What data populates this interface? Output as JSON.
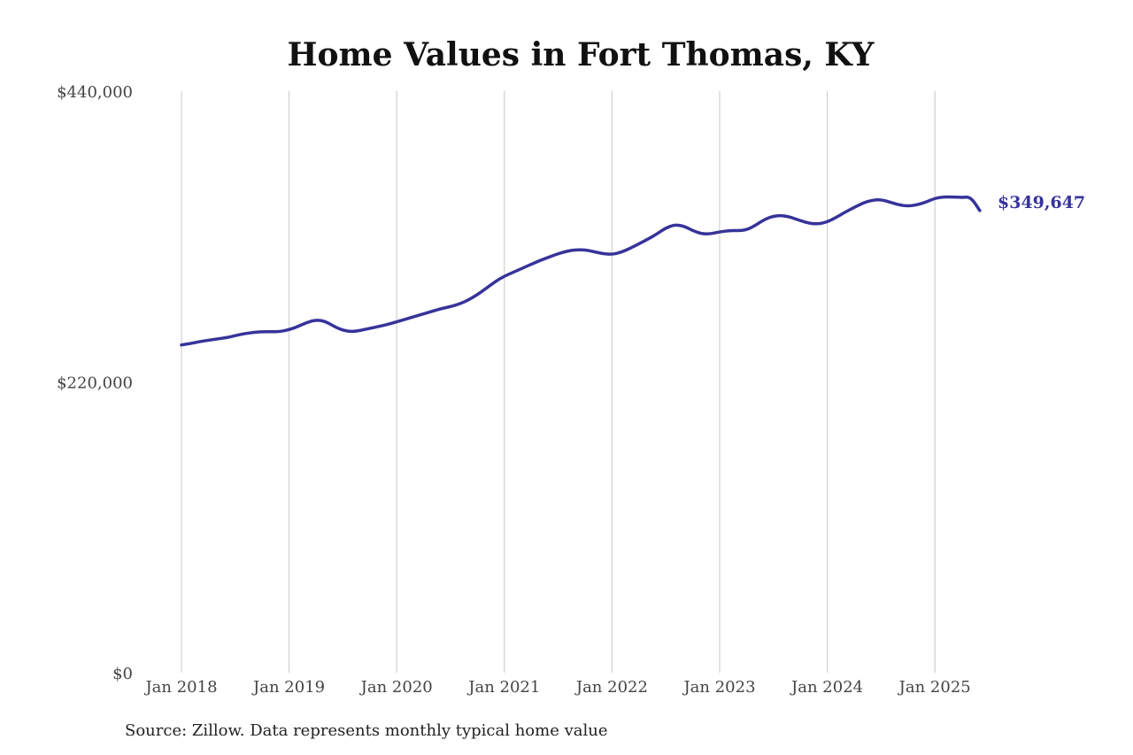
{
  "footer": {
    "source": "Source: Zillow. Data represents monthly typical home value"
  },
  "colors": {
    "line": "#37339a",
    "grid": "#c8c8c8",
    "text": "#444444"
  },
  "chart_data": {
    "type": "line",
    "title": "Home Values in Fort Thomas, KY",
    "xlabel": "",
    "ylabel": "",
    "ylim": [
      0,
      440000
    ],
    "yticks": [
      0,
      220000,
      440000
    ],
    "ytick_labels": [
      "$0",
      "$220,000",
      "$440,000"
    ],
    "xticks": [
      "2018-01",
      "2019-01",
      "2020-01",
      "2021-01",
      "2022-01",
      "2023-01",
      "2024-01",
      "2025-01"
    ],
    "xtick_labels": [
      "Jan 2018",
      "Jan 2019",
      "Jan 2020",
      "Jan 2021",
      "Jan 2022",
      "Jan 2023",
      "Jan 2024",
      "Jan 2025"
    ],
    "grid": {
      "vertical": true,
      "horizontal": false
    },
    "legend": "none",
    "end_label": "$349,647",
    "series": [
      {
        "name": "",
        "x": [
          "2018-01",
          "2018-02",
          "2018-03",
          "2018-04",
          "2018-05",
          "2018-06",
          "2018-07",
          "2018-08",
          "2018-09",
          "2018-10",
          "2018-11",
          "2018-12",
          "2019-01",
          "2019-02",
          "2019-03",
          "2019-04",
          "2019-05",
          "2019-06",
          "2019-07",
          "2019-08",
          "2019-09",
          "2019-10",
          "2019-11",
          "2019-12",
          "2020-01",
          "2020-02",
          "2020-03",
          "2020-04",
          "2020-05",
          "2020-06",
          "2020-07",
          "2020-08",
          "2020-09",
          "2020-10",
          "2020-11",
          "2020-12",
          "2021-01",
          "2021-02",
          "2021-03",
          "2021-04",
          "2021-05",
          "2021-06",
          "2021-07",
          "2021-08",
          "2021-09",
          "2021-10",
          "2021-11",
          "2021-12",
          "2022-01",
          "2022-02",
          "2022-03",
          "2022-04",
          "2022-05",
          "2022-06",
          "2022-07",
          "2022-08",
          "2022-09",
          "2022-10",
          "2022-11",
          "2022-12",
          "2023-01",
          "2023-02",
          "2023-03",
          "2023-04",
          "2023-05",
          "2023-06",
          "2023-07",
          "2023-08",
          "2023-09",
          "2023-10",
          "2023-11",
          "2023-12",
          "2024-01",
          "2024-02",
          "2024-03",
          "2024-04",
          "2024-05",
          "2024-06",
          "2024-07",
          "2024-08",
          "2024-09",
          "2024-10",
          "2024-11",
          "2024-12",
          "2025-01",
          "2025-02",
          "2025-03",
          "2025-04",
          "2025-05",
          "2025-06"
        ],
        "values": [
          248000,
          249000,
          250500,
          251500,
          252500,
          253500,
          255000,
          256500,
          257500,
          258000,
          258000,
          258000,
          259500,
          262000,
          265000,
          267000,
          266000,
          262000,
          259000,
          258000,
          259000,
          260500,
          262000,
          263500,
          265500,
          267500,
          269500,
          271500,
          273500,
          275500,
          277000,
          279000,
          282000,
          286000,
          291000,
          296000,
          300000,
          303000,
          306000,
          309000,
          312000,
          314500,
          317000,
          319000,
          320000,
          320000,
          318500,
          317000,
          316500,
          318000,
          321000,
          324500,
          328000,
          332000,
          336500,
          339000,
          338000,
          334500,
          332000,
          332000,
          333500,
          334500,
          334500,
          335000,
          338500,
          343000,
          345500,
          346000,
          344500,
          342000,
          340000,
          339500,
          341000,
          344500,
          348500,
          352000,
          355500,
          357500,
          358000,
          356000,
          354000,
          353000,
          354000,
          356000,
          359000,
          360000,
          360000,
          359500,
          360000,
          349647
        ]
      }
    ]
  }
}
